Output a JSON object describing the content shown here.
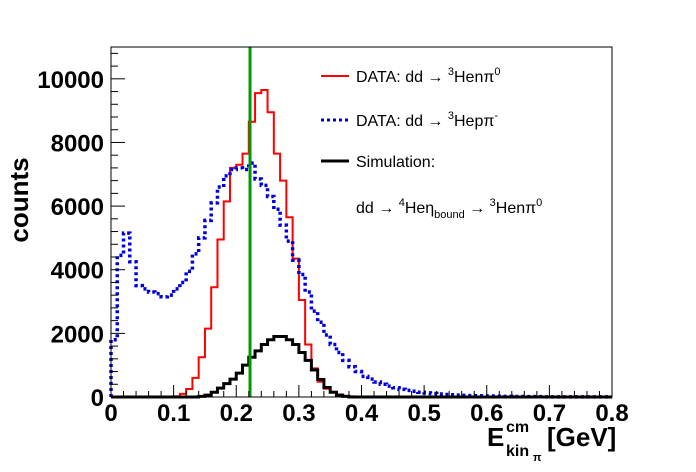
{
  "chart_data": {
    "type": "histogram",
    "xlabel_main": "E",
    "xlabel_sup": "cm",
    "xlabel_sub": "kin",
    "xlabel_subsub": "π",
    "xlabel_unit": "[GeV]",
    "ylabel": "counts",
    "xlim": [
      0,
      0.8
    ],
    "ylim": [
      0,
      11000
    ],
    "xticks": [
      0,
      0.1,
      0.2,
      0.3,
      0.4,
      0.5,
      0.6,
      0.7,
      0.8
    ],
    "xtick_labels": [
      "0",
      "0.1",
      "0.2",
      "0.3",
      "0.4",
      "0.5",
      "0.6",
      "0.7",
      "0.8"
    ],
    "yticks": [
      0,
      2000,
      4000,
      6000,
      8000,
      10000
    ],
    "ytick_labels": [
      "0",
      "2000",
      "4000",
      "6000",
      "8000",
      "10000"
    ],
    "bin_width": 0.01,
    "vertical_line": {
      "x": 0.222,
      "color": "#009900"
    },
    "legend": {
      "position": "top-right",
      "entries": [
        {
          "series": 0,
          "prefix": "DATA: dd → ",
          "sup": "3",
          "suffix": "Henπ",
          "suffix_sup": "0"
        },
        {
          "series": 1,
          "prefix": "DATA: dd → ",
          "sup": "3",
          "suffix": "Hepπ",
          "suffix_sup": "-"
        },
        {
          "series": 2,
          "prefix": "Simulation:",
          "sup": "",
          "suffix": "",
          "suffix_sup": ""
        }
      ],
      "reaction_line": {
        "part1": "dd → ",
        "part1_sup": "4",
        "part2": "Heη",
        "part2_sub": "bound",
        "part3": " → ",
        "part3_sup": "3",
        "part4": "Henπ",
        "part4_sup": "0"
      }
    },
    "series": [
      {
        "name": "DATA: dd → 3Henπ0",
        "color": "#ff0000",
        "style": "solid",
        "values": [
          0,
          0,
          0,
          0,
          0,
          0,
          0,
          0,
          0,
          0,
          20,
          100,
          250,
          600,
          1250,
          2150,
          3450,
          4950,
          6150,
          7200,
          7300,
          7650,
          8650,
          9550,
          9650,
          8950,
          7650,
          6800,
          5650,
          4350,
          3050,
          1650,
          900,
          480,
          260,
          160,
          80,
          35,
          20,
          0,
          0,
          0,
          0,
          0,
          0,
          0,
          0,
          0,
          0,
          0,
          0,
          0,
          0,
          0,
          0,
          0,
          0,
          0,
          0,
          0,
          0,
          0,
          0,
          0,
          0,
          0,
          0,
          0,
          0,
          0,
          0,
          0,
          0,
          0,
          0,
          0,
          0,
          0,
          0,
          0
        ]
      },
      {
        "name": "DATA: dd → 3Hepπ-",
        "color": "#0000dd",
        "style": "dotted",
        "values": [
          1800,
          4450,
          5150,
          4250,
          3500,
          3400,
          3300,
          3250,
          3150,
          3200,
          3400,
          3600,
          3950,
          4500,
          5000,
          5550,
          6100,
          6600,
          6950,
          7150,
          7200,
          7150,
          7350,
          6850,
          6650,
          6300,
          5900,
          5400,
          4900,
          4300,
          3850,
          3300,
          2700,
          2350,
          1950,
          1650,
          1400,
          1150,
          950,
          800,
          650,
          560,
          470,
          400,
          340,
          290,
          240,
          210,
          180,
          150,
          130,
          110,
          95,
          80,
          70,
          60,
          50,
          45,
          40,
          35,
          30,
          25,
          20,
          20,
          15,
          15,
          10,
          10,
          10,
          5,
          5,
          5,
          5,
          5,
          5,
          5,
          5,
          5,
          5,
          5
        ]
      },
      {
        "name": "Simulation",
        "color": "#000000",
        "style": "solid",
        "values": [
          0,
          0,
          0,
          0,
          0,
          0,
          0,
          0,
          0,
          0,
          0,
          0,
          0,
          0,
          20,
          60,
          150,
          280,
          420,
          560,
          750,
          1000,
          1250,
          1450,
          1650,
          1800,
          1900,
          1900,
          1800,
          1650,
          1400,
          1150,
          850,
          550,
          300,
          150,
          60,
          20,
          0,
          0,
          0,
          0,
          0,
          0,
          0,
          0,
          0,
          0,
          0,
          0,
          0,
          0,
          0,
          0,
          0,
          0,
          0,
          0,
          0,
          0,
          0,
          0,
          0,
          0,
          0,
          0,
          0,
          0,
          0,
          0,
          0,
          0,
          0,
          0,
          0,
          0,
          0,
          0,
          0,
          0
        ]
      }
    ]
  }
}
